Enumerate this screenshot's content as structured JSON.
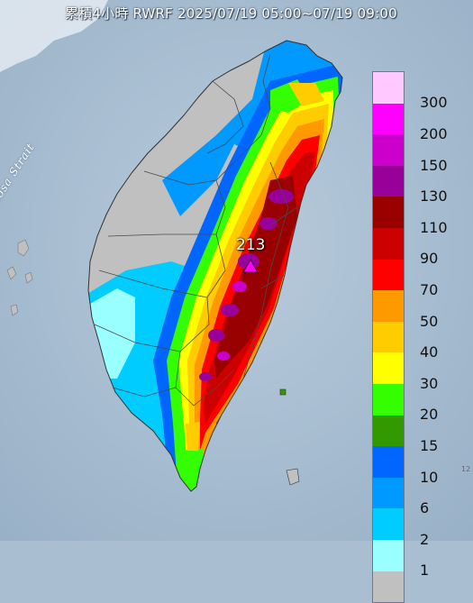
{
  "title": "累積4小時 RWRF 2025/07/19 05:00~07/19 09:00",
  "strait_label": "Formosa Strait",
  "max_value_label": "213",
  "corner_text": "12",
  "legend": [
    {
      "label": "300",
      "color": "#ffc8ff"
    },
    {
      "label": "200",
      "color": "#ff00ff"
    },
    {
      "label": "150",
      "color": "#cc00cc"
    },
    {
      "label": "130",
      "color": "#990099"
    },
    {
      "label": "110",
      "color": "#990000"
    },
    {
      "label": "90",
      "color": "#cc0000"
    },
    {
      "label": "70",
      "color": "#ff0000"
    },
    {
      "label": "50",
      "color": "#ff9900"
    },
    {
      "label": "40",
      "color": "#ffcc00"
    },
    {
      "label": "30",
      "color": "#ffff00"
    },
    {
      "label": "20",
      "color": "#33ff00"
    },
    {
      "label": "15",
      "color": "#339900"
    },
    {
      "label": "10",
      "color": "#0066ff"
    },
    {
      "label": "6",
      "color": "#0099ff"
    },
    {
      "label": "2",
      "color": "#00ccff"
    },
    {
      "label": "1",
      "color": "#99ffff"
    },
    {
      "label": "",
      "color": "#c0c0c0"
    }
  ],
  "colors": {
    "sea": "#a9bed0",
    "no_rain": "#c0c0c0",
    "county_border": "#4a4a4a",
    "max_marker": "#ff00ff"
  }
}
